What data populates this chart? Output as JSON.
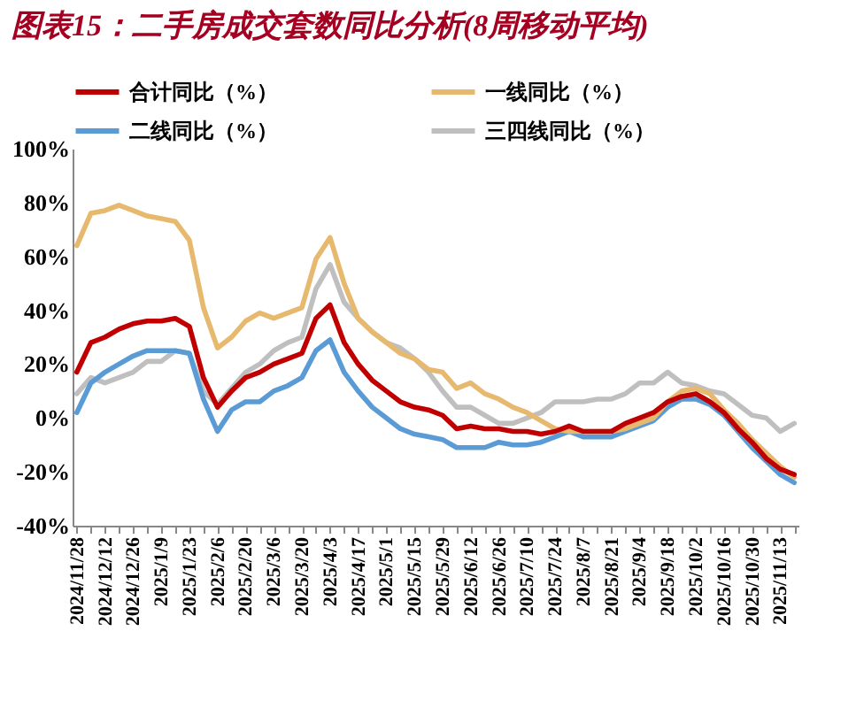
{
  "chart_data": {
    "type": "line",
    "title": "图表15：二手房成交套数同比分析(8周移动平均)",
    "categories": [
      "2024/11/28",
      null,
      "2024/12/12",
      null,
      "2024/12/26",
      null,
      "2025/1/9",
      null,
      "2025/1/23",
      null,
      "2025/2/6",
      null,
      "2025/2/20",
      null,
      "2025/3/6",
      null,
      "2025/3/20",
      null,
      "2025/4/3",
      null,
      "2025/4/17",
      null,
      "2025/5/1",
      null,
      "2025/5/15",
      null,
      "2025/5/29",
      null,
      "2025/6/12",
      null,
      "2025/6/26",
      null,
      "2025/7/10",
      null,
      "2025/7/24",
      null,
      "2025/8/7",
      null,
      "2025/8/21",
      null,
      "2025/9/4",
      null,
      "2025/9/18",
      null,
      "2025/10/2",
      null,
      "2025/10/16",
      null,
      "2025/10/30",
      null,
      "2025/11/13",
      null
    ],
    "series": [
      {
        "name": "合计同比（%）",
        "color": "#c00000",
        "values": [
          17,
          28,
          30,
          33,
          35,
          36,
          36,
          37,
          34,
          15,
          4,
          10,
          15,
          17,
          20,
          22,
          24,
          37,
          42,
          28,
          20,
          14,
          10,
          6,
          4,
          3,
          1,
          -4,
          -3,
          -4,
          -4,
          -5,
          -5,
          -6,
          -5,
          -3,
          -5,
          -5,
          -5,
          -2,
          0,
          2,
          6,
          8,
          9,
          6,
          2,
          -4,
          -9,
          -15,
          -19,
          -21
        ]
      },
      {
        "name": "一线同比（%）",
        "color": "#e6b96e",
        "values": [
          64,
          76,
          77,
          79,
          77,
          75,
          74,
          73,
          66,
          41,
          26,
          30,
          36,
          39,
          37,
          39,
          41,
          59,
          67,
          50,
          37,
          32,
          28,
          24,
          22,
          18,
          17,
          11,
          13,
          9,
          7,
          4,
          2,
          -1,
          -4,
          -5,
          -5,
          -5,
          -5,
          -4,
          -2,
          0,
          6,
          10,
          11,
          9,
          3,
          -2,
          -8,
          -13,
          -18,
          -22
        ]
      },
      {
        "name": "二线同比（%）",
        "color": "#5b9bd5",
        "values": [
          2,
          13,
          17,
          20,
          23,
          25,
          25,
          25,
          24,
          7,
          -5,
          3,
          6,
          6,
          10,
          12,
          15,
          25,
          29,
          17,
          10,
          4,
          0,
          -4,
          -6,
          -7,
          -8,
          -11,
          -11,
          -11,
          -9,
          -10,
          -10,
          -9,
          -7,
          -5,
          -7,
          -7,
          -7,
          -5,
          -3,
          -1,
          4,
          7,
          7,
          5,
          1,
          -5,
          -11,
          -16,
          -21,
          -24
        ]
      },
      {
        "name": "三四线同比（%）",
        "color": "#bfbfbf",
        "values": [
          9,
          15,
          13,
          15,
          17,
          21,
          21,
          25,
          24,
          10,
          5,
          11,
          17,
          20,
          25,
          28,
          30,
          48,
          57,
          43,
          37,
          32,
          28,
          26,
          22,
          17,
          10,
          4,
          4,
          1,
          -2,
          -2,
          0,
          2,
          6,
          6,
          6,
          7,
          7,
          9,
          13,
          13,
          17,
          13,
          12,
          10,
          9,
          5,
          1,
          0,
          -5,
          -2
        ]
      }
    ],
    "ylim": [
      -40,
      100
    ],
    "yticks": [
      {
        "value": -40,
        "label": "-40%"
      },
      {
        "value": -20,
        "label": "-20%"
      },
      {
        "value": 0,
        "label": "0%"
      },
      {
        "value": 20,
        "label": "20%"
      },
      {
        "value": 40,
        "label": "40%"
      },
      {
        "value": 60,
        "label": "60%"
      },
      {
        "value": 80,
        "label": "80%"
      },
      {
        "value": 100,
        "label": "100%"
      }
    ],
    "legend": "top",
    "grid": false,
    "line_style": "solid"
  }
}
